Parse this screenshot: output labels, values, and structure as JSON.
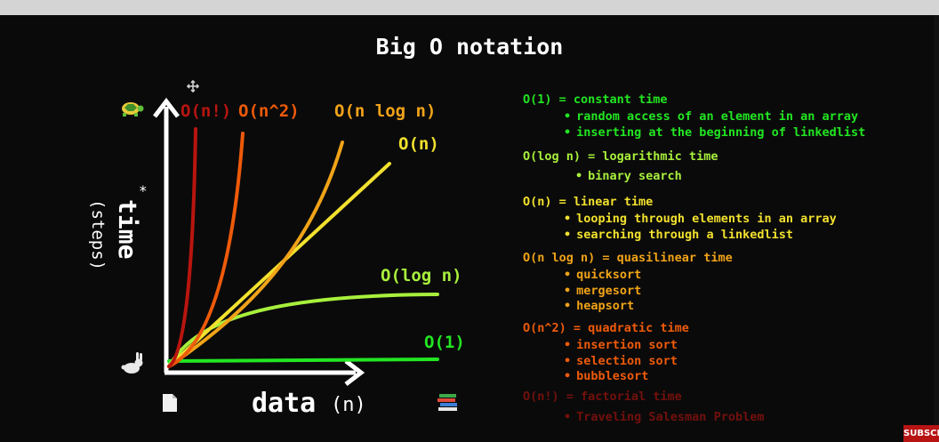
{
  "slide": {
    "title": "Big O notation",
    "subscribe_label": "SUBSCRIBE"
  },
  "chart_data": {
    "type": "line",
    "xlabel": "data",
    "xlabel_suffix": "(n)",
    "ylabel": "time",
    "ylabel_sub": "(steps)",
    "ylabel_mark": "*",
    "series": [
      {
        "name": "O(n!)",
        "color": "#b8150f"
      },
      {
        "name": "O(n^2)",
        "color": "#ee5a0a"
      },
      {
        "name": "O(n log n)",
        "color": "#f0a318"
      },
      {
        "name": "O(n)",
        "color": "#f2e12e"
      },
      {
        "name": "O(log n)",
        "color": "#a8f03c"
      },
      {
        "name": "O(1)",
        "color": "#22e622"
      }
    ],
    "icons": {
      "y_top": "turtle-icon",
      "y_bottom": "rabbit-icon",
      "x_left": "document-icon",
      "x_right": "books-icon",
      "cursor": "move-cursor-icon"
    }
  },
  "notes": [
    {
      "header": "O(1) = constant time",
      "color": "#22e622",
      "items": [
        "random access of an element in an array",
        "inserting at the beginning of linkedlist"
      ]
    },
    {
      "header": "O(log n) = logarithmic time",
      "color": "#a8f03c",
      "items": [
        "binary search"
      ]
    },
    {
      "header": "O(n) = linear time",
      "color": "#f2e12e",
      "items": [
        "looping through elements in an array",
        "searching through a linkedlist"
      ]
    },
    {
      "header": "O(n log n) = quasilinear time",
      "color": "#f0a318",
      "items": [
        "quicksort",
        "mergesort",
        "heapsort"
      ]
    },
    {
      "header": "O(n^2) = quadratic time",
      "color": "#ee5a0a",
      "items": [
        "insertion sort",
        "selection sort",
        "bubblesort"
      ]
    },
    {
      "header": "O(n!) = factorial time",
      "color": "#b8150f",
      "items": [
        "Traveling Salesman Problem"
      ]
    }
  ]
}
